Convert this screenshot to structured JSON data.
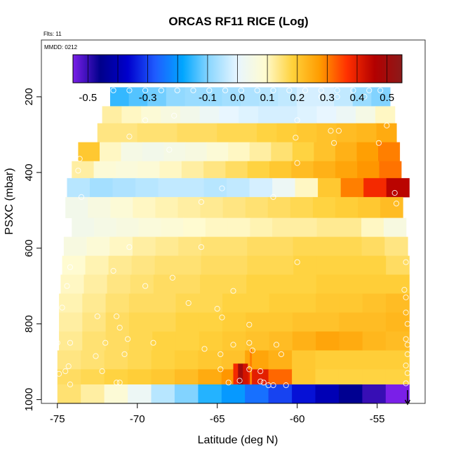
{
  "chart_data": {
    "type": "heatmap",
    "title": "ORCAS RF11 RICE (Log)",
    "annotation_flts": "Flts: 11",
    "annotation_date": "MMDD: 0212",
    "xlabel": "Latitude (deg N)",
    "ylabel": "PSXC (mbar)",
    "xlim": [
      -76,
      -52
    ],
    "ylim": [
      1010,
      50
    ],
    "x_ticks": [
      -75,
      -70,
      -65,
      -60,
      -55
    ],
    "x_tick_labels": [
      "-75",
      "-70",
      "-65",
      "-60",
      "-55"
    ],
    "y_ticks": [
      200,
      400,
      600,
      800,
      1000
    ],
    "y_tick_labels": [
      "200",
      "400",
      "600",
      "800",
      "1000"
    ],
    "colorbar": {
      "range": [
        -0.55,
        0.55
      ],
      "ticks": [
        -0.5,
        -0.3,
        -0.1,
        0.0,
        0.1,
        0.2,
        0.3,
        0.4,
        0.5
      ],
      "tick_labels": [
        "-0.5",
        "-0.3",
        "-0.1",
        "0.0",
        "0.1",
        "0.2",
        "0.3",
        "0.4",
        "0.5"
      ],
      "colors": [
        "#7a1fe8",
        "#00008b",
        "#0000cd",
        "#1f5cff",
        "#00a6ff",
        "#8fd8ff",
        "#e8f6ff",
        "#fffbd0",
        "#ffd23c",
        "#ff9c00",
        "#ff3000",
        "#b30000",
        "#8b1a1a"
      ]
    },
    "bands": [
      {
        "p_top": 175,
        "p_bot": 225,
        "lon_start": -71.7,
        "lon_end": -54.2,
        "vals": [
          -0.15,
          -0.13,
          -0.11,
          -0.09,
          -0.08,
          -0.08,
          -0.07,
          -0.06,
          -0.05,
          -0.04,
          -0.02,
          -0.02,
          -0.04,
          -0.08,
          -0.1
        ]
      },
      {
        "p_top": 225,
        "p_bot": 270,
        "lon_start": -72.2,
        "lon_end": -53.9,
        "vals": [
          0.12,
          0.1,
          0.08,
          0.06,
          0.04,
          0.02,
          0.0,
          -0.01,
          -0.02,
          -0.02,
          -0.01,
          0.0,
          0.02,
          0.05,
          0.1
        ]
      },
      {
        "p_top": 270,
        "p_bot": 320,
        "lon_start": -72.5,
        "lon_end": -53.8,
        "vals": [
          0.14,
          0.14,
          0.15,
          0.15,
          0.16,
          0.16,
          0.17,
          0.17,
          0.18,
          0.19,
          0.2,
          0.21,
          0.22,
          0.23,
          0.25
        ]
      },
      {
        "p_top": 320,
        "p_bot": 370,
        "lon_start": -73.7,
        "lon_end": -53.6,
        "vals": [
          0.2,
          0.1,
          0.05,
          0.04,
          0.05,
          0.06,
          0.08,
          0.1,
          0.12,
          0.15,
          0.18,
          0.21,
          0.24,
          0.27,
          0.3
        ]
      },
      {
        "p_top": 370,
        "p_bot": 415,
        "lon_start": -74.1,
        "lon_end": -53.5,
        "vals": [
          0.12,
          0.08,
          0.07,
          0.08,
          0.1,
          0.12,
          0.14,
          0.16,
          0.18,
          0.2,
          0.22,
          0.24,
          0.26,
          0.28,
          0.31
        ]
      },
      {
        "p_top": 415,
        "p_bot": 465,
        "lon_start": -74.4,
        "lon_end": -53.0,
        "vals": [
          -0.05,
          -0.07,
          -0.06,
          -0.05,
          -0.04,
          -0.04,
          -0.05,
          -0.04,
          -0.02,
          0.02,
          0.1,
          0.2,
          0.3,
          0.38,
          0.45
        ]
      },
      {
        "p_top": 465,
        "p_bot": 520,
        "lon_start": -74.5,
        "lon_end": -53.4,
        "vals": [
          0.04,
          0.06,
          0.08,
          0.1,
          0.11,
          0.12,
          0.13,
          0.14,
          0.15,
          0.16,
          0.17,
          0.18,
          0.19,
          0.2,
          0.22
        ]
      },
      {
        "p_top": 520,
        "p_bot": 570,
        "lon_start": -74.1,
        "lon_end": -53.2,
        "vals": [
          0.04,
          0.05,
          0.06,
          0.07,
          0.08,
          0.09,
          0.1,
          0.1,
          0.11,
          0.12,
          0.12,
          0.13,
          0.13,
          0.1,
          0.06
        ]
      },
      {
        "p_top": 570,
        "p_bot": 620,
        "lon_start": -74.6,
        "lon_end": -53.1,
        "vals": [
          0.06,
          0.08,
          0.1,
          0.12,
          0.13,
          0.14,
          0.15,
          0.15,
          0.16,
          0.16,
          0.17,
          0.17,
          0.17,
          0.16,
          0.14
        ]
      },
      {
        "p_top": 620,
        "p_bot": 670,
        "lon_start": -74.7,
        "lon_end": -53.0,
        "vals": [
          0.09,
          0.11,
          0.13,
          0.14,
          0.15,
          0.15,
          0.16,
          0.16,
          0.17,
          0.17,
          0.18,
          0.18,
          0.18,
          0.18,
          0.16
        ]
      },
      {
        "p_top": 670,
        "p_bot": 720,
        "lon_start": -74.8,
        "lon_end": -53.0,
        "vals": [
          0.1,
          0.12,
          0.14,
          0.15,
          0.16,
          0.16,
          0.17,
          0.17,
          0.18,
          0.18,
          0.18,
          0.19,
          0.19,
          0.19,
          0.19
        ]
      },
      {
        "p_top": 720,
        "p_bot": 770,
        "lon_start": -74.9,
        "lon_end": -53.0,
        "vals": [
          0.11,
          0.13,
          0.15,
          0.16,
          0.16,
          0.17,
          0.17,
          0.18,
          0.18,
          0.19,
          0.19,
          0.2,
          0.2,
          0.21,
          0.22
        ]
      },
      {
        "p_top": 770,
        "p_bot": 820,
        "lon_start": -74.9,
        "lon_end": -53.0,
        "vals": [
          0.12,
          0.14,
          0.16,
          0.17,
          0.17,
          0.18,
          0.18,
          0.19,
          0.2,
          0.2,
          0.21,
          0.21,
          0.22,
          0.22,
          0.23
        ]
      },
      {
        "p_top": 820,
        "p_bot": 870,
        "lon_start": -74.9,
        "lon_end": -53.0,
        "vals": [
          0.13,
          0.15,
          0.16,
          0.17,
          0.18,
          0.18,
          0.19,
          0.2,
          0.21,
          0.22,
          0.24,
          0.26,
          0.25,
          0.23,
          0.22
        ]
      },
      {
        "p_top": 870,
        "p_bot": 920,
        "lon_start": -75.0,
        "lon_end": -53.0,
        "vals": [
          0.14,
          0.15,
          0.16,
          0.17,
          0.18,
          0.19,
          0.2,
          0.21,
          0.26,
          0.24,
          0.2,
          0.19,
          0.19,
          0.19,
          0.19
        ]
      },
      {
        "p_top": 920,
        "p_bot": 960,
        "lon_start": -75.0,
        "lon_end": -53.0,
        "vals": [
          0.16,
          0.17,
          0.18,
          0.19,
          0.2,
          0.22,
          0.25,
          0.28,
          0.4,
          0.32,
          0.2,
          0.18,
          0.18,
          0.18,
          0.18
        ]
      },
      {
        "p_top": 960,
        "p_bot": 1010,
        "lon_start": -75.0,
        "lon_end": -53.0,
        "vals": [
          0.15,
          0.12,
          0.08,
          0.02,
          -0.05,
          -0.1,
          -0.16,
          -0.2,
          -0.25,
          -0.3,
          -0.35,
          -0.4,
          -0.45,
          -0.5,
          -0.55
        ]
      }
    ],
    "hotspot": {
      "lon_start": -64.0,
      "lon_end": -63.1,
      "p_top": 905,
      "p_bot": 960,
      "vals": [
        0.38,
        0.5,
        0.42
      ]
    },
    "tick_marks": [
      {
        "lon": -62.9,
        "p_top": 865,
        "p_bot": 960,
        "value": 0.3
      }
    ],
    "observation_points": [
      [
        -71.5,
        183
      ],
      [
        -70.5,
        183
      ],
      [
        -69.5,
        183
      ],
      [
        -68.5,
        183
      ],
      [
        -67.5,
        183
      ],
      [
        -66.5,
        183
      ],
      [
        -65.5,
        183
      ],
      [
        -64.5,
        183
      ],
      [
        -63.5,
        183
      ],
      [
        -62.5,
        183
      ],
      [
        -61.5,
        183
      ],
      [
        -60.5,
        183
      ],
      [
        -59.5,
        183
      ],
      [
        -58.5,
        183
      ],
      [
        -57.5,
        183
      ],
      [
        -56.5,
        183
      ],
      [
        -55.5,
        183
      ],
      [
        -54.8,
        183
      ],
      [
        -58.5,
        200
      ],
      [
        -57.5,
        200
      ],
      [
        -55.8,
        200
      ],
      [
        -69.5,
        262
      ],
      [
        -67.7,
        250
      ],
      [
        -60.0,
        262
      ],
      [
        -54.4,
        276
      ],
      [
        -54.9,
        322
      ],
      [
        -70.5,
        305
      ],
      [
        -68.0,
        340
      ],
      [
        -60.1,
        308
      ],
      [
        -57.7,
        322
      ],
      [
        -57.4,
        290
      ],
      [
        -57.9,
        290
      ],
      [
        -73.6,
        364
      ],
      [
        -73.7,
        395
      ],
      [
        -60.0,
        375
      ],
      [
        -64.7,
        442
      ],
      [
        -53.9,
        454
      ],
      [
        -53.8,
        482
      ],
      [
        -73.5,
        465
      ],
      [
        -66.0,
        478
      ],
      [
        -61.5,
        465
      ],
      [
        -70.5,
        597
      ],
      [
        -66.0,
        597
      ],
      [
        -60.0,
        637
      ],
      [
        -53.2,
        637
      ],
      [
        -74.2,
        650
      ],
      [
        -71.5,
        660
      ],
      [
        -69.5,
        700
      ],
      [
        -67.8,
        678
      ],
      [
        -64.0,
        713
      ],
      [
        -74.4,
        700
      ],
      [
        -53.3,
        710
      ],
      [
        -53.2,
        730
      ],
      [
        -74.7,
        757
      ],
      [
        -72.5,
        780
      ],
      [
        -71.3,
        780
      ],
      [
        -66.8,
        745
      ],
      [
        -65.0,
        760
      ],
      [
        -64.7,
        783
      ],
      [
        -53.2,
        770
      ],
      [
        -53.1,
        800
      ],
      [
        -63.0,
        802
      ],
      [
        -75.0,
        850
      ],
      [
        -74.2,
        850
      ],
      [
        -72.0,
        850
      ],
      [
        -71.1,
        810
      ],
      [
        -70.6,
        840
      ],
      [
        -70.8,
        880
      ],
      [
        -69.0,
        850
      ],
      [
        -65.8,
        866
      ],
      [
        -64.8,
        880
      ],
      [
        -64.0,
        855
      ],
      [
        -63.0,
        850
      ],
      [
        -62.8,
        870
      ],
      [
        -61.3,
        855
      ],
      [
        -61.0,
        880
      ],
      [
        -53.2,
        840
      ],
      [
        -53.1,
        855
      ],
      [
        -53.1,
        880
      ],
      [
        -53.2,
        910
      ],
      [
        -74.3,
        912
      ],
      [
        -74.5,
        925
      ],
      [
        -72.2,
        925
      ],
      [
        -72.6,
        885
      ],
      [
        -71.1,
        955
      ],
      [
        -71.3,
        955
      ],
      [
        -64.8,
        920
      ],
      [
        -64.3,
        955
      ],
      [
        -63.6,
        950
      ],
      [
        -63.0,
        920
      ],
      [
        -62.3,
        925
      ],
      [
        -62.3,
        952
      ],
      [
        -62.1,
        955
      ],
      [
        -61.8,
        962
      ],
      [
        -61.5,
        962
      ],
      [
        -60.7,
        962
      ],
      [
        -53.1,
        930
      ],
      [
        -53.2,
        957
      ],
      [
        -74.9,
        932
      ],
      [
        -74.2,
        960
      ]
    ],
    "arrow": {
      "lon": -53.1,
      "p_from": 975,
      "p_to": 1012
    }
  }
}
